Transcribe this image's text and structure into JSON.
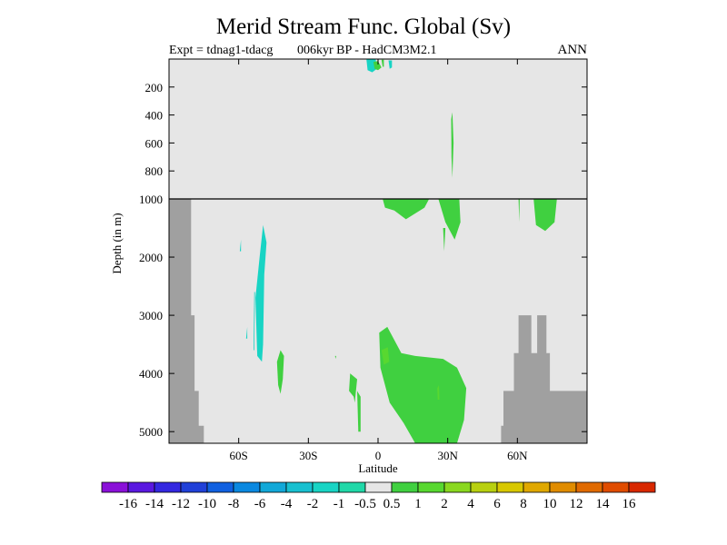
{
  "chart_data": {
    "type": "heatmap",
    "title": "Merid Stream Func. Global (Sv)",
    "subtitle_left": "Expt = tdnag1-tdacg",
    "subtitle_center": "006kyr BP - HadCM3M2.1",
    "subtitle_right": "ANN",
    "xlabel": "Latitude",
    "ylabel": "Depth (in m)",
    "xlim": [
      -90,
      90
    ],
    "ylim_upper": [
      0,
      1000
    ],
    "ylim_lower": [
      1000,
      5200
    ],
    "x_ticks": [
      {
        "value": -60,
        "label": "60S"
      },
      {
        "value": -30,
        "label": "30S"
      },
      {
        "value": 0,
        "label": "0"
      },
      {
        "value": 30,
        "label": "30N"
      },
      {
        "value": 60,
        "label": "60N"
      }
    ],
    "y_ticks_upper": [
      {
        "value": 200,
        "label": "200"
      },
      {
        "value": 400,
        "label": "400"
      },
      {
        "value": 600,
        "label": "600"
      },
      {
        "value": 800,
        "label": "800"
      },
      {
        "value": 1000,
        "label": "1000"
      }
    ],
    "y_ticks_lower": [
      {
        "value": 2000,
        "label": "2000"
      },
      {
        "value": 3000,
        "label": "3000"
      },
      {
        "value": 4000,
        "label": "4000"
      },
      {
        "value": 5000,
        "label": "5000"
      }
    ],
    "background_color": "#e6e6e6",
    "land_color": "#a0a0a0",
    "colorbar": {
      "levels": [
        "-16",
        "-14",
        "-12",
        "-10",
        "-8",
        "-6",
        "-4",
        "-2",
        "-1",
        "-0.5",
        "0.5",
        "1",
        "2",
        "4",
        "6",
        "8",
        "10",
        "12",
        "14",
        "16"
      ],
      "colors": [
        "#8a10d8",
        "#5a18e0",
        "#3428e0",
        "#2040d8",
        "#1060e0",
        "#0a88e0",
        "#12a8d8",
        "#18c0d0",
        "#18d4c4",
        "#20d8a8",
        "#e6e6e6",
        "#40d040",
        "#58d830",
        "#8ad820",
        "#b8d010",
        "#d8c800",
        "#e0a800",
        "#e08c00",
        "#e06a00",
        "#e04c00",
        "#d82800"
      ]
    },
    "land_mask": [
      {
        "name": "antarctic-shelf",
        "points": [
          [
            -90,
            1000
          ],
          [
            -80.5,
            1000
          ],
          [
            -80.5,
            3000
          ],
          [
            -79,
            3000
          ],
          [
            -79,
            4300
          ],
          [
            -77.2,
            4300
          ],
          [
            -77.2,
            4900
          ],
          [
            -75,
            4900
          ],
          [
            -75,
            5200
          ],
          [
            -90,
            5200
          ]
        ]
      },
      {
        "name": "north-basin",
        "points": [
          [
            53,
            5200
          ],
          [
            53,
            4900
          ],
          [
            54,
            4900
          ],
          [
            54,
            4300
          ],
          [
            58.5,
            4300
          ],
          [
            58.5,
            3650
          ],
          [
            60.5,
            3650
          ],
          [
            60.5,
            3000
          ],
          [
            66,
            3000
          ],
          [
            66,
            3650
          ],
          [
            68.5,
            3650
          ],
          [
            68.5,
            3000
          ],
          [
            72.5,
            3000
          ],
          [
            72.5,
            3650
          ],
          [
            74,
            3650
          ],
          [
            74,
            4300
          ],
          [
            90,
            4300
          ],
          [
            90,
            5200
          ]
        ]
      }
    ],
    "anomaly_regions": [
      {
        "level": "-1",
        "section": "upper",
        "points": [
          [
            -5,
            0
          ],
          [
            -1,
            0
          ],
          [
            -0.5,
            70
          ],
          [
            -2.5,
            95
          ],
          [
            -4.5,
            80
          ]
        ]
      },
      {
        "level": "0.5",
        "section": "upper",
        "points": [
          [
            -2,
            20
          ],
          [
            0,
            15
          ],
          [
            1.5,
            60
          ],
          [
            0,
            80
          ],
          [
            -1.5,
            70
          ]
        ]
      },
      {
        "level": "-1",
        "section": "upper",
        "points": [
          [
            4.5,
            10
          ],
          [
            6,
            10
          ],
          [
            6,
            60
          ],
          [
            5,
            70
          ]
        ]
      },
      {
        "level": "0.5",
        "section": "upper",
        "points": [
          [
            1.5,
            5
          ],
          [
            2.5,
            5
          ],
          [
            2.5,
            55
          ],
          [
            2,
            55
          ]
        ]
      },
      {
        "level": "0.5",
        "section": "upper",
        "points": [
          [
            31.5,
            430
          ],
          [
            32,
            380
          ],
          [
            32.5,
            600
          ],
          [
            32,
            850
          ],
          [
            31.6,
            700
          ]
        ]
      },
      {
        "level": "0.5",
        "section": "lower",
        "points": [
          [
            2,
            1000
          ],
          [
            22,
            1000
          ],
          [
            20,
            1150
          ],
          [
            12,
            1350
          ],
          [
            7,
            1200
          ],
          [
            3,
            1150
          ]
        ]
      },
      {
        "level": "0.5",
        "section": "lower",
        "points": [
          [
            26,
            1000
          ],
          [
            35,
            1000
          ],
          [
            35.5,
            1400
          ],
          [
            33,
            1700
          ],
          [
            29,
            1400
          ]
        ]
      },
      {
        "level": "0.5",
        "section": "lower",
        "points": [
          [
            28,
            1500
          ],
          [
            29,
            1500
          ],
          [
            28.5,
            1900
          ]
        ]
      },
      {
        "level": "0.5",
        "section": "lower",
        "points": [
          [
            60.5,
            1000
          ],
          [
            61,
            1000
          ],
          [
            60.8,
            1400
          ]
        ]
      },
      {
        "level": "0.5",
        "section": "lower",
        "points": [
          [
            67,
            1000
          ],
          [
            77,
            1000
          ],
          [
            76,
            1400
          ],
          [
            72,
            1550
          ],
          [
            68,
            1450
          ]
        ]
      },
      {
        "level": "-1",
        "section": "lower",
        "points": [
          [
            -48,
            1750
          ],
          [
            -49,
            2300
          ],
          [
            -49.5,
            3500
          ],
          [
            -50,
            3800
          ],
          [
            -52,
            3700
          ],
          [
            -52.8,
            2700
          ],
          [
            -51,
            2000
          ],
          [
            -49.5,
            1450
          ]
        ]
      },
      {
        "level": "-1",
        "section": "lower",
        "points": [
          [
            -53,
            2600
          ],
          [
            -53.3,
            3600
          ],
          [
            -53.6,
            3600
          ],
          [
            -53.3,
            2600
          ]
        ]
      },
      {
        "level": "-1",
        "section": "lower",
        "points": [
          [
            -59,
            1700
          ],
          [
            -59,
            1900
          ],
          [
            -59.5,
            1900
          ]
        ]
      },
      {
        "level": "-1",
        "section": "lower",
        "points": [
          [
            -56.3,
            3200
          ],
          [
            -56.3,
            3400
          ],
          [
            -56.8,
            3400
          ]
        ]
      },
      {
        "level": "0.5",
        "section": "lower",
        "points": [
          [
            -42,
            3600
          ],
          [
            -40.5,
            3700
          ],
          [
            -41,
            4100
          ],
          [
            -42,
            4350
          ],
          [
            -43,
            4200
          ],
          [
            -43.5,
            3800
          ]
        ]
      },
      {
        "level": "0.5",
        "section": "lower",
        "points": [
          [
            -12,
            4000
          ],
          [
            -9,
            4100
          ],
          [
            -10,
            4500
          ],
          [
            -10.5,
            4400
          ],
          [
            -12.5,
            4300
          ]
        ]
      },
      {
        "level": "0.5",
        "section": "lower",
        "points": [
          [
            -9,
            4300
          ],
          [
            -7.5,
            4400
          ],
          [
            -7.5,
            5000
          ],
          [
            -8.5,
            5000
          ]
        ]
      },
      {
        "level": "0.5",
        "section": "lower",
        "points": [
          [
            -18.5,
            3700
          ],
          [
            -18,
            3700
          ],
          [
            -18.3,
            3750
          ]
        ]
      },
      {
        "level": "0.5",
        "section": "lower",
        "points": [
          [
            0.5,
            3300
          ],
          [
            4,
            3200
          ],
          [
            10,
            3650
          ],
          [
            16,
            3700
          ],
          [
            28,
            3750
          ],
          [
            34,
            3900
          ],
          [
            38,
            4250
          ],
          [
            37,
            4800
          ],
          [
            34,
            5200
          ],
          [
            16,
            5200
          ],
          [
            11,
            4850
          ],
          [
            5,
            4500
          ],
          [
            1,
            3900
          ]
        ]
      },
      {
        "level": "1",
        "section": "lower",
        "points": [
          [
            1.5,
            3600
          ],
          [
            4.2,
            3550
          ],
          [
            4.8,
            3800
          ],
          [
            2.5,
            3850
          ]
        ]
      },
      {
        "level": "1",
        "section": "lower",
        "points": [
          [
            25.5,
            4250
          ],
          [
            26.2,
            4200
          ],
          [
            26.4,
            4450
          ],
          [
            25.7,
            4450
          ]
        ]
      }
    ]
  }
}
